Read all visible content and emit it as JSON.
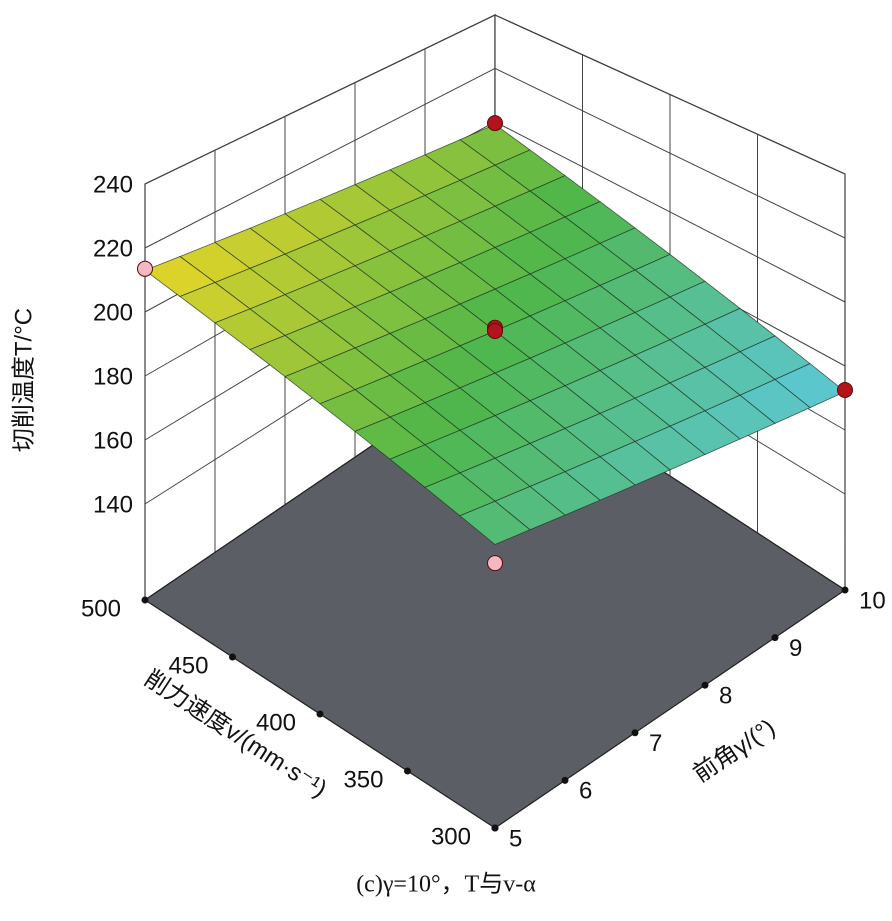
{
  "chart_data": {
    "type": "surface",
    "title": "(c)γ=10°，T与v-α",
    "xlabel": "削力速度v/(mm·s⁻¹)",
    "ylabel": "前角γ/(°)",
    "zlabel": "切削温度T/°C",
    "x": [
      300,
      320,
      340,
      360,
      380,
      400,
      420,
      440,
      460,
      480,
      500
    ],
    "y": [
      5,
      5.5,
      6,
      6.5,
      7,
      7.5,
      8,
      8.5,
      9,
      9.5,
      10
    ],
    "z": [
      [
        186,
        184.6,
        183.2,
        181.8,
        180.4,
        179,
        177.6,
        176.2,
        174.8,
        173.4,
        172
      ],
      [
        188.7,
        187.3,
        185.9,
        184.5,
        183.1,
        181.7,
        180.3,
        178.9,
        177.5,
        176.1,
        174.7
      ],
      [
        191.4,
        190,
        188.6,
        187.2,
        185.8,
        184.4,
        183,
        181.6,
        180.2,
        178.8,
        177.4
      ],
      [
        194.1,
        192.7,
        191.3,
        189.9,
        188.5,
        187.1,
        185.7,
        184.3,
        182.9,
        181.5,
        180.1
      ],
      [
        196.8,
        195.4,
        194,
        192.6,
        191.2,
        189.8,
        188.4,
        187,
        185.6,
        184.2,
        182.8
      ],
      [
        199.5,
        198.1,
        196.7,
        195.3,
        193.9,
        192.5,
        191.1,
        189.7,
        188.3,
        186.9,
        185.5
      ],
      [
        202.2,
        200.8,
        199.4,
        198,
        196.6,
        195.2,
        193.8,
        192.4,
        191,
        189.6,
        188.2
      ],
      [
        204.9,
        203.5,
        202.1,
        200.7,
        199.3,
        197.9,
        196.5,
        195.1,
        193.7,
        192.3,
        190.9
      ],
      [
        207.6,
        206.2,
        204.8,
        203.4,
        202,
        200.6,
        199.2,
        197.8,
        196.4,
        195,
        193.6
      ],
      [
        210.3,
        208.9,
        207.5,
        206.1,
        204.7,
        203.3,
        201.9,
        200.5,
        199.1,
        197.7,
        196.3
      ],
      [
        213,
        211.6,
        210.2,
        208.8,
        207.4,
        206,
        204.6,
        203.2,
        201.8,
        200.4,
        199
      ]
    ],
    "points": {
      "x": [
        500,
        500,
        400,
        400,
        300,
        300
      ],
      "y": [
        5,
        10,
        7.5,
        7.5,
        10,
        5
      ],
      "z": [
        213.5,
        199.5,
        193.5,
        192.5,
        172.5,
        181
      ],
      "colors": [
        "#f4b8c2",
        "#b3141c",
        "#b3141c",
        "#b3141c",
        "#b3141c",
        "#f4b8c2"
      ]
    },
    "colormap": [
      "#5ec8dc",
      "#4fb64a",
      "#ecd626"
    ],
    "floor_color": "#5b5e64",
    "xlim": [
      300,
      500
    ],
    "xticks": [
      300,
      350,
      400,
      450,
      500
    ],
    "ylim": [
      5,
      10
    ],
    "yticks": [
      5,
      6,
      7,
      8,
      9,
      10
    ],
    "zlim": [
      110,
      240
    ],
    "zticks": [
      140,
      160,
      180,
      200,
      220,
      240
    ]
  }
}
